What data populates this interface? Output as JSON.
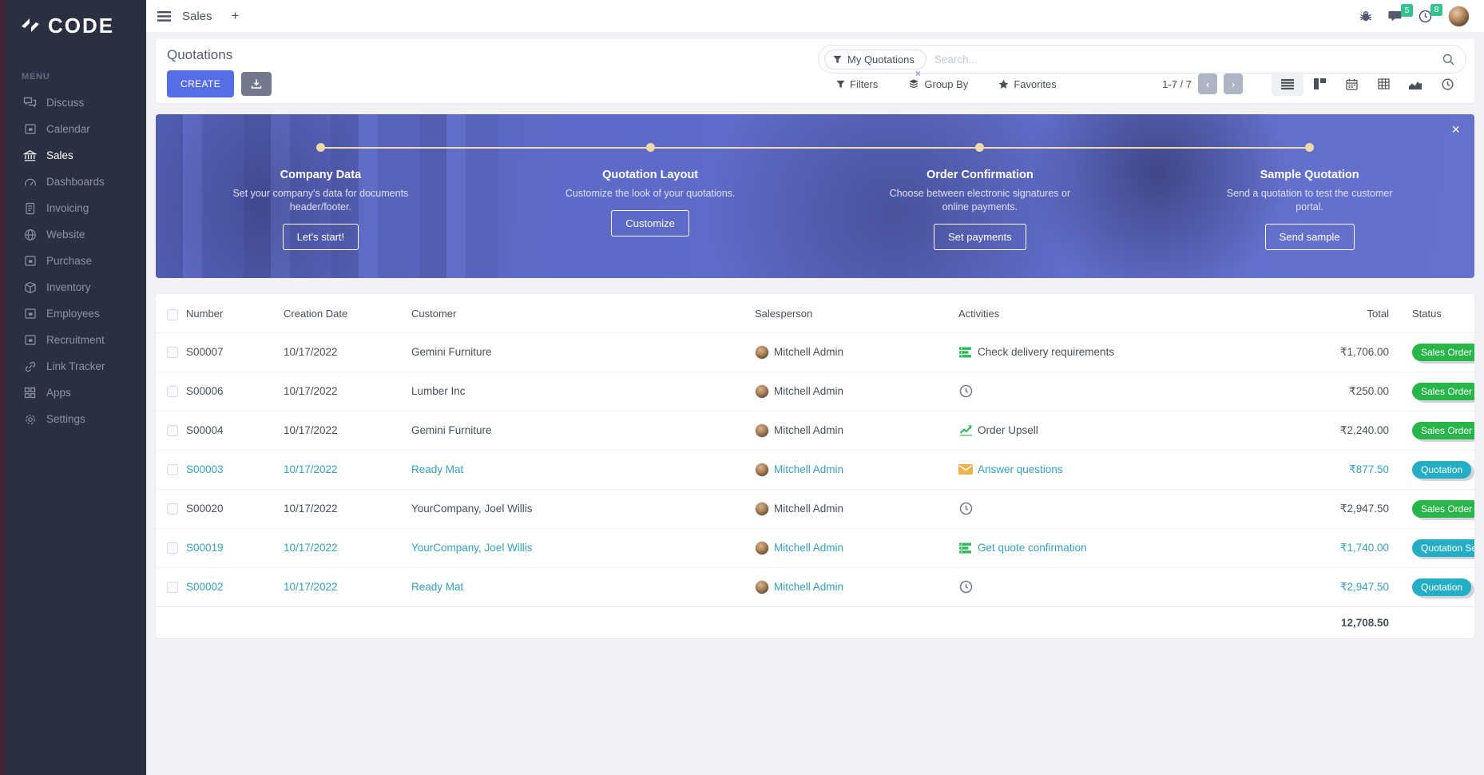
{
  "brand": {
    "name": "CODE"
  },
  "topbar": {
    "app_title": "Sales",
    "add_tab_label": "+",
    "message_count": "5",
    "activity_count": "8",
    "icons": [
      "bug-icon",
      "messages-icon",
      "activities-clock-icon",
      "user-avatar"
    ]
  },
  "sidebar": {
    "section_label": "MENU",
    "items": [
      {
        "label": "Discuss",
        "icon": "chat-icon",
        "active": false
      },
      {
        "label": "Calendar",
        "icon": "app-icon",
        "active": false
      },
      {
        "label": "Sales",
        "icon": "bank-icon",
        "active": true
      },
      {
        "label": "Dashboards",
        "icon": "gauge-icon",
        "active": false
      },
      {
        "label": "Invoicing",
        "icon": "invoice-icon",
        "active": false
      },
      {
        "label": "Website",
        "icon": "globe-icon",
        "active": false
      },
      {
        "label": "Purchase",
        "icon": "app-icon",
        "active": false
      },
      {
        "label": "Inventory",
        "icon": "box-icon",
        "active": false
      },
      {
        "label": "Employees",
        "icon": "app-icon",
        "active": false
      },
      {
        "label": "Recruitment",
        "icon": "app-icon",
        "active": false
      },
      {
        "label": "Link Tracker",
        "icon": "link-icon",
        "active": false
      },
      {
        "label": "Apps",
        "icon": "grid-icon",
        "active": false
      },
      {
        "label": "Settings",
        "icon": "gear-icon",
        "active": false
      }
    ]
  },
  "control_panel": {
    "title": "Quotations",
    "create_label": "CREATE",
    "export_icon": "download-icon",
    "facet_label": "My Quotations",
    "facet_remove_label": "×",
    "search_placeholder": "Search...",
    "filters_label": "Filters",
    "group_by_label": "Group By",
    "favorites_label": "Favorites",
    "pager_text": "1-7 / 7",
    "pager_prev": "‹",
    "pager_next": "›",
    "view_switcher": [
      {
        "icon": "list-view-icon",
        "active": true
      },
      {
        "icon": "kanban-view-icon",
        "active": false
      },
      {
        "icon": "calendar-view-icon",
        "active": false
      },
      {
        "icon": "pivot-view-icon",
        "active": false
      },
      {
        "icon": "graph-view-icon",
        "active": false
      },
      {
        "icon": "activity-view-icon",
        "active": false
      }
    ]
  },
  "banner": {
    "close_label": "×",
    "steps": [
      {
        "title": "Company Data",
        "description": "Set your company's data for documents header/footer.",
        "button": "Let's start!"
      },
      {
        "title": "Quotation Layout",
        "description": "Customize the look of your quotations.",
        "button": "Customize"
      },
      {
        "title": "Order Confirmation",
        "description": "Choose between electronic signatures or online payments.",
        "button": "Set payments"
      },
      {
        "title": "Sample Quotation",
        "description": "Send a quotation to test the customer portal.",
        "button": "Send sample"
      }
    ]
  },
  "table": {
    "headers": [
      "Number",
      "Creation Date",
      "Customer",
      "Salesperson",
      "Activities",
      "Total",
      "Status"
    ],
    "rows": [
      {
        "number": "S00007",
        "creation_date": "10/17/2022",
        "customer": "Gemini Furniture",
        "salesperson": "Mitchell Admin",
        "activity": {
          "icon": "activity-tasks-icon",
          "label": "Check delivery requirements"
        },
        "total": "₹1,706.00",
        "status": {
          "label": "Sales Order",
          "type": "success"
        },
        "highlighted": false
      },
      {
        "number": "S00006",
        "creation_date": "10/17/2022",
        "customer": "Lumber Inc",
        "salesperson": "Mitchell Admin",
        "activity": {
          "icon": "activity-clock-icon",
          "label": ""
        },
        "total": "₹250.00",
        "status": {
          "label": "Sales Order",
          "type": "success"
        },
        "highlighted": false
      },
      {
        "number": "S00004",
        "creation_date": "10/17/2022",
        "customer": "Gemini Furniture",
        "salesperson": "Mitchell Admin",
        "activity": {
          "icon": "activity-chart-icon",
          "label": "Order Upsell"
        },
        "total": "₹2,240.00",
        "status": {
          "label": "Sales Order",
          "type": "success"
        },
        "highlighted": false
      },
      {
        "number": "S00003",
        "creation_date": "10/17/2022",
        "customer": "Ready Mat",
        "salesperson": "Mitchell Admin",
        "activity": {
          "icon": "activity-mail-icon",
          "label": "Answer questions"
        },
        "total": "₹877.50",
        "status": {
          "label": "Quotation",
          "type": "info"
        },
        "highlighted": true
      },
      {
        "number": "S00020",
        "creation_date": "10/17/2022",
        "customer": "YourCompany, Joel Willis",
        "salesperson": "Mitchell Admin",
        "activity": {
          "icon": "activity-clock-icon",
          "label": ""
        },
        "total": "₹2,947.50",
        "status": {
          "label": "Sales Order",
          "type": "success"
        },
        "highlighted": false
      },
      {
        "number": "S00019",
        "creation_date": "10/17/2022",
        "customer": "YourCompany, Joel Willis",
        "salesperson": "Mitchell Admin",
        "activity": {
          "icon": "activity-tasks-icon",
          "label": "Get quote confirmation"
        },
        "total": "₹1,740.00",
        "status": {
          "label": "Quotation Sent",
          "type": "info"
        },
        "highlighted": true
      },
      {
        "number": "S00002",
        "creation_date": "10/17/2022",
        "customer": "Ready Mat",
        "salesperson": "Mitchell Admin",
        "activity": {
          "icon": "activity-clock-icon",
          "label": ""
        },
        "total": "₹2,947.50",
        "status": {
          "label": "Quotation",
          "type": "info"
        },
        "highlighted": true
      }
    ],
    "footer_total": "12,708.50"
  },
  "colors": {
    "primary": "#556ee6",
    "secondary": "#74788d",
    "success_badge": "#28b54a",
    "info_badge": "#23aec6",
    "link_teal": "#35a0bf",
    "banner_overlay": "#5f6cc9",
    "stepper": "#eed9a8",
    "sidebar_bg": "#2a3042"
  }
}
